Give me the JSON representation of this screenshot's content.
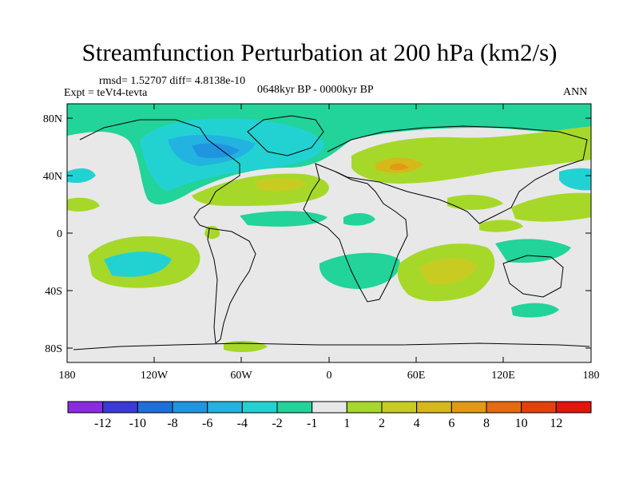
{
  "title": "Streamfunction Perturbation at 200 hPa (km2/s)",
  "stats_line": "rmsd= 1.52707 diff= 4.8138e-10",
  "expt_line": "Expt = teVt4-tevta",
  "period_line": "0648kyr BP - 0000kyr BP",
  "season": "ANN",
  "lat_ticks": [
    "80N",
    "40N",
    "0",
    "40S",
    "80S"
  ],
  "lon_ticks": [
    "180",
    "120W",
    "60W",
    "0",
    "60E",
    "120E",
    "180"
  ],
  "colorbar": {
    "labels": [
      "-12",
      "-10",
      "-8",
      "-6",
      "-4",
      "-2",
      "-1",
      "1",
      "2",
      "4",
      "6",
      "8",
      "10",
      "12"
    ],
    "colors": [
      "#8a2be2",
      "#3a3ad8",
      "#1e6fd9",
      "#1f95e0",
      "#22b3e0",
      "#22d2d2",
      "#22d39a",
      "#e8e8e8",
      "#a6d82a",
      "#c8cc22",
      "#d6b81a",
      "#e29a14",
      "#e66a10",
      "#e5400c",
      "#e0160c"
    ]
  }
}
